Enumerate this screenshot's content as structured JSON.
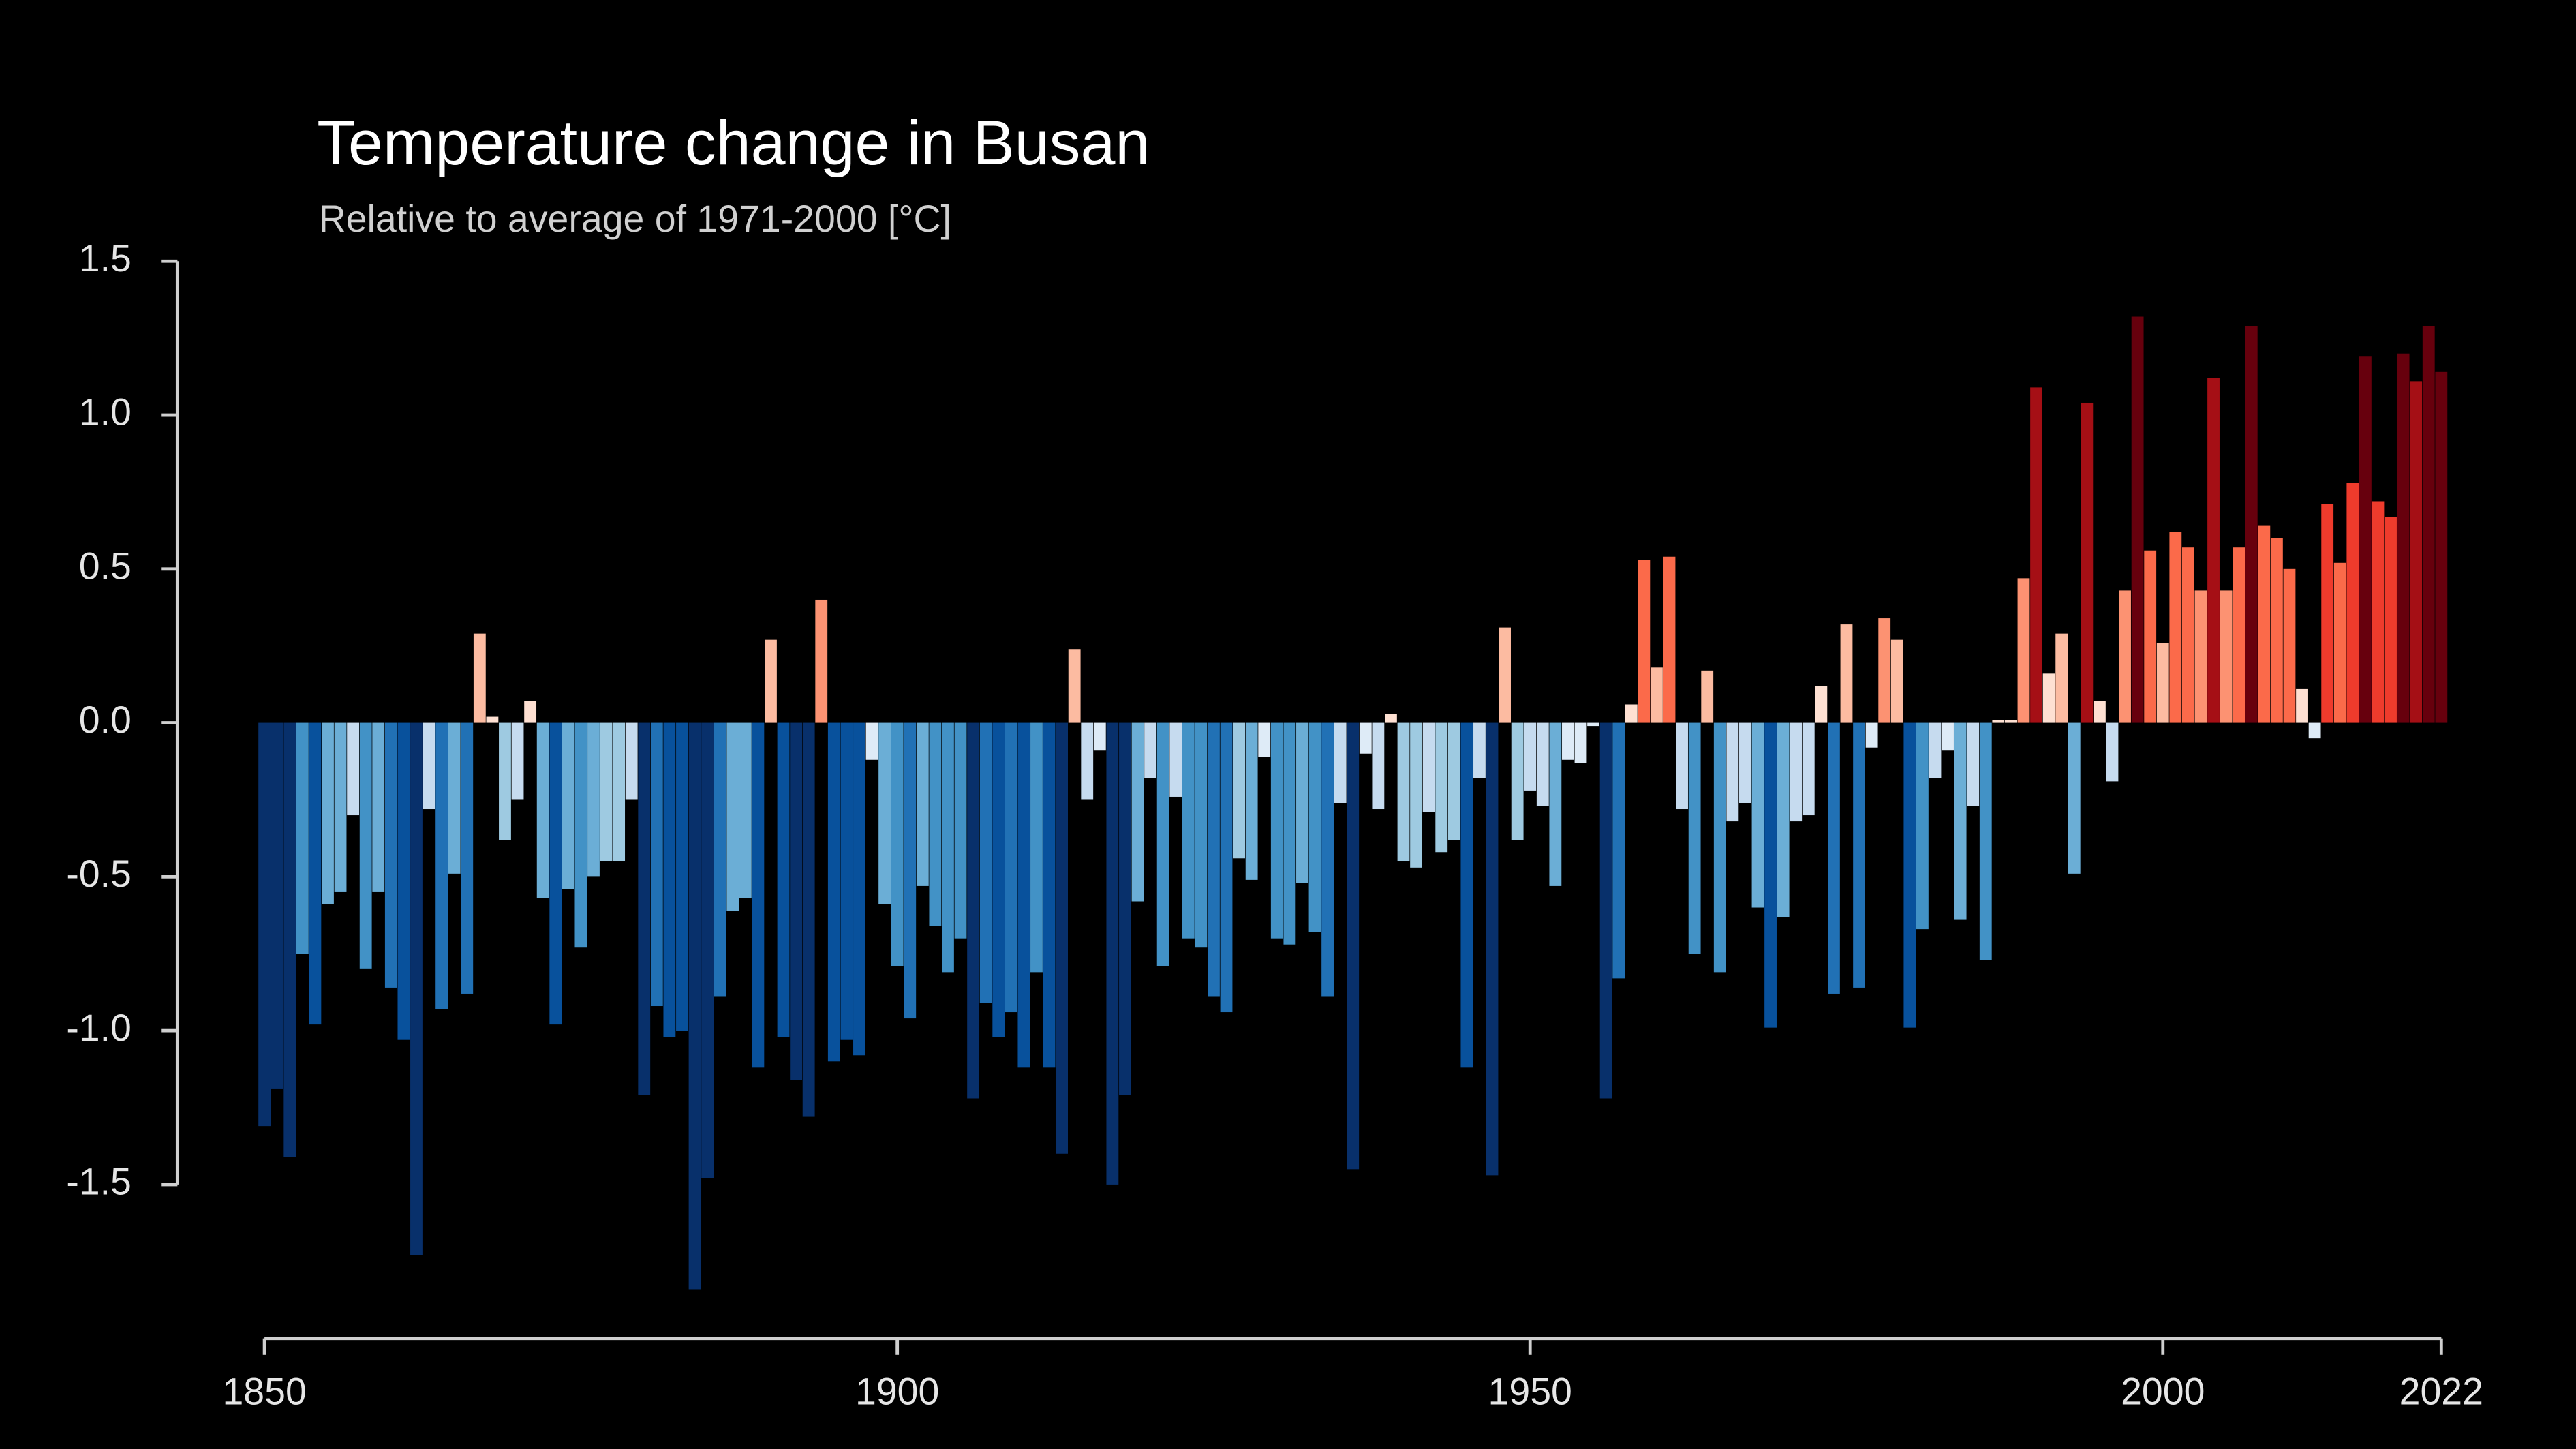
{
  "chart_data": {
    "type": "bar",
    "title": "Temperature change in Busan",
    "subtitle": "Relative to average of 1971-2000  [°C]",
    "x": [
      1850,
      1851,
      1852,
      1853,
      1854,
      1855,
      1856,
      1857,
      1858,
      1859,
      1860,
      1861,
      1862,
      1863,
      1864,
      1865,
      1866,
      1867,
      1868,
      1869,
      1870,
      1871,
      1872,
      1873,
      1874,
      1875,
      1876,
      1877,
      1878,
      1879,
      1880,
      1881,
      1882,
      1883,
      1884,
      1885,
      1886,
      1887,
      1888,
      1889,
      1890,
      1891,
      1892,
      1893,
      1894,
      1895,
      1896,
      1897,
      1898,
      1899,
      1900,
      1901,
      1902,
      1903,
      1904,
      1905,
      1906,
      1907,
      1908,
      1909,
      1910,
      1911,
      1912,
      1913,
      1914,
      1915,
      1916,
      1917,
      1918,
      1919,
      1920,
      1921,
      1922,
      1923,
      1924,
      1925,
      1926,
      1927,
      1928,
      1929,
      1930,
      1931,
      1932,
      1933,
      1934,
      1935,
      1936,
      1937,
      1938,
      1939,
      1940,
      1941,
      1942,
      1943,
      1944,
      1945,
      1946,
      1947,
      1948,
      1949,
      1950,
      1951,
      1952,
      1953,
      1954,
      1955,
      1956,
      1957,
      1958,
      1959,
      1960,
      1961,
      1962,
      1963,
      1964,
      1965,
      1966,
      1967,
      1968,
      1969,
      1970,
      1971,
      1972,
      1973,
      1974,
      1975,
      1976,
      1977,
      1978,
      1979,
      1980,
      1981,
      1982,
      1983,
      1984,
      1985,
      1986,
      1987,
      1988,
      1989,
      1990,
      1991,
      1992,
      1993,
      1994,
      1995,
      1996,
      1997,
      1998,
      1999,
      2000,
      2001,
      2002,
      2003,
      2004,
      2005,
      2006,
      2007,
      2008,
      2009,
      2010,
      2011,
      2012,
      2013,
      2014,
      2015,
      2016,
      2017,
      2018,
      2019,
      2020,
      2021,
      2022
    ],
    "values": [
      -1.31,
      -1.19,
      -1.41,
      -0.75,
      -0.98,
      -0.59,
      -0.55,
      -0.3,
      -0.8,
      -0.55,
      -0.86,
      -1.03,
      -1.73,
      -0.28,
      -0.93,
      -0.49,
      -0.88,
      0.29,
      0.02,
      -0.38,
      -0.25,
      0.07,
      -0.57,
      -0.98,
      -0.54,
      -0.73,
      -0.5,
      -0.45,
      -0.45,
      -0.25,
      -1.21,
      -0.92,
      -1.02,
      -1.0,
      -1.84,
      -1.48,
      -0.89,
      -0.61,
      -0.57,
      -1.12,
      0.27,
      -1.02,
      -1.16,
      -1.28,
      0.4,
      -1.1,
      -1.03,
      -1.08,
      -0.12,
      -0.59,
      -0.79,
      -0.96,
      -0.53,
      -0.66,
      -0.81,
      -0.7,
      -1.22,
      -0.91,
      -1.02,
      -0.94,
      -1.12,
      -0.81,
      -1.12,
      -1.4,
      0.24,
      -0.25,
      -0.09,
      -1.5,
      -1.21,
      -0.58,
      -0.18,
      -0.79,
      -0.24,
      -0.7,
      -0.73,
      -0.89,
      -0.94,
      -0.44,
      -0.51,
      -0.11,
      -0.7,
      -0.72,
      -0.52,
      -0.68,
      -0.89,
      -0.26,
      -1.45,
      -0.1,
      -0.28,
      0.03,
      -0.45,
      -0.47,
      -0.29,
      -0.42,
      -0.38,
      -1.12,
      -0.18,
      -1.47,
      0.31,
      -0.38,
      -0.22,
      -0.27,
      -0.53,
      -0.12,
      -0.13,
      -0.01,
      -1.22,
      -0.83,
      0.06,
      0.53,
      0.18,
      0.54,
      -0.28,
      -0.75,
      0.17,
      -0.81,
      -0.32,
      -0.26,
      -0.6,
      -0.99,
      -0.63,
      -0.32,
      -0.3,
      0.12,
      -0.88,
      0.32,
      -0.86,
      -0.08,
      0.34,
      0.27,
      -0.99,
      -0.67,
      -0.18,
      -0.09,
      -0.64,
      -0.27,
      -0.77,
      0.01,
      0.01,
      0.47,
      1.09,
      0.16,
      0.29,
      -0.49,
      1.04,
      0.07,
      -0.19,
      0.43,
      1.32,
      0.56,
      0.26,
      0.62,
      0.57,
      0.43,
      1.12,
      0.43,
      0.57,
      1.29,
      0.64,
      0.6,
      0.5,
      0.11,
      -0.05,
      0.71,
      0.52,
      0.78,
      1.19,
      0.72,
      0.67,
      1.2,
      1.11,
      1.29,
      1.14
    ],
    "xlim": [
      1850,
      2022
    ],
    "xticks": [
      1850,
      1900,
      1950,
      2000,
      2022
    ],
    "ylim": [
      -2,
      1.5
    ],
    "yticks": [
      1.5,
      {
        "value": 1,
        "label": "1.0"
      },
      0.5,
      {
        "value": 0,
        "label": "0.0"
      },
      -0.5,
      {
        "value": -1,
        "label": "-1.0"
      },
      -1.5
    ]
  }
}
